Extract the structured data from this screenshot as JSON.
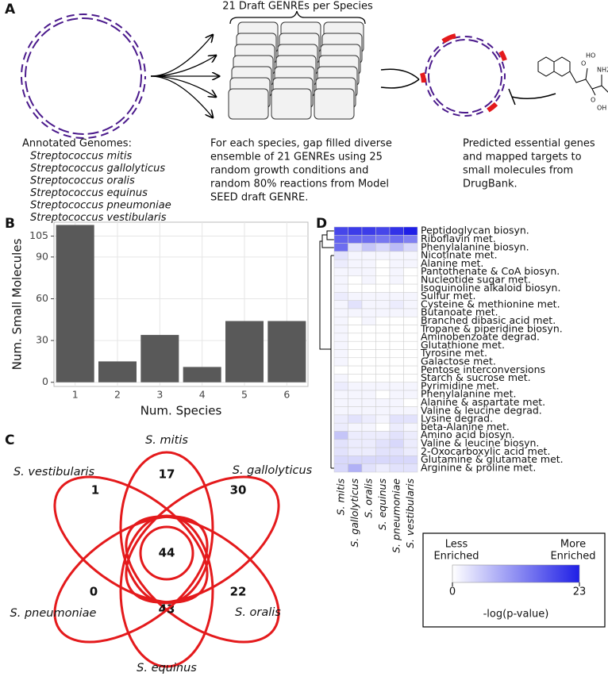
{
  "panel_labels": [
    "A",
    "B",
    "C",
    "D"
  ],
  "panel_a": {
    "stack_title": "21 Draft GENREs per Species",
    "genomes_title": "Annotated Genomes:",
    "species": [
      "Streptococcus mitis",
      "Streptococcus gallolyticus",
      "Streptococcus oralis",
      "Streptococcus equinus",
      "Streptococcus pneumoniae",
      "Streptococcus vestibularis"
    ],
    "description": [
      "For each species, gap filled diverse",
      "ensemble of 21 GENREs using 25",
      "random growth conditions and",
      "random 80% reactions from Model",
      "SEED draft GENRE."
    ],
    "result": [
      "Predicted essential genes",
      "and mapped targets to",
      "small molecules from",
      "DrugBank."
    ],
    "molecule_labels": [
      "O",
      "HO",
      "NH2",
      "O",
      "OH"
    ]
  },
  "chart_data": [
    {
      "type": "bar",
      "categories": [
        "1",
        "2",
        "3",
        "4",
        "5",
        "6"
      ],
      "values": [
        113,
        15,
        34,
        11,
        44,
        44
      ],
      "color": "#595959",
      "ylim": [
        -3,
        115
      ],
      "yticks": [
        0,
        30,
        60,
        90,
        105
      ],
      "x_label": "Num. Species",
      "y_label": "Num. Small Molecules",
      "grid": true
    },
    {
      "type": "venn",
      "sets": [
        "S. mitis",
        "S. gallolyticus",
        "S. oralis",
        "S. equinus",
        "S. pneumoniae",
        "S. vestibularis"
      ],
      "unique": [
        17,
        30,
        22,
        43,
        0,
        1
      ],
      "shared_by_all": 44,
      "color": "#e41a1c"
    },
    {
      "type": "heatmap",
      "rows": [
        "Peptidoglycan biosyn.",
        "Riboflavin met.",
        "Phenylalanine biosyn.",
        "Nicotinate met.",
        "Alanine met.",
        "Pantothenate & CoA biosyn.",
        "Nucleotide sugar met.",
        "Isoquinoline alkaloid biosyn.",
        "Sulfur met.",
        "Cysteine & methionine met.",
        "Butanoate met.",
        "Branched dibasic acid met.",
        "Tropane & piperidine biosyn.",
        "Aminobenzoate degrad.",
        "Glutathione met.",
        "Tyrosine met.",
        "Galactose met.",
        "Pentose interconversions",
        "Starch & sucrose met.",
        "Pyrimidine met.",
        "Phenylalanine met.",
        "Alanine & aspartate met.",
        "Valine & leucine degrad.",
        "Lysine degrad.",
        "beta-Alanine met.",
        "Amino acid biosyn.",
        "Valine & leucine biosyn.",
        "2-Oxocarboxylic acid met.",
        "Glutamine & glutamate met.",
        "Arginine & proline met."
      ],
      "columns": [
        "S. mitis",
        "S. gallolyticus",
        "S. oralis",
        "S. equinus",
        "S. pneumoniae",
        "S. vestibularis"
      ],
      "values": [
        [
          19,
          20,
          20,
          19,
          21,
          23
        ],
        [
          16,
          15,
          15,
          14,
          15,
          13
        ],
        [
          15,
          3,
          6,
          4,
          7,
          4
        ],
        [
          3,
          1,
          1,
          1,
          1,
          1
        ],
        [
          2,
          1,
          1,
          0,
          1,
          1
        ],
        [
          1,
          1,
          1,
          0,
          1,
          0
        ],
        [
          1,
          0,
          1,
          0,
          1,
          0
        ],
        [
          1,
          0,
          0,
          0,
          0,
          0
        ],
        [
          2,
          1,
          1,
          1,
          1,
          1
        ],
        [
          1,
          3,
          1,
          1,
          2,
          1
        ],
        [
          1,
          1,
          1,
          1,
          1,
          1
        ],
        [
          1,
          0,
          1,
          0,
          0,
          0
        ],
        [
          1,
          0,
          0,
          0,
          0,
          0
        ],
        [
          1,
          0,
          0,
          0,
          0,
          0
        ],
        [
          1,
          0,
          0,
          0,
          0,
          0
        ],
        [
          1,
          0,
          0,
          0,
          0,
          0
        ],
        [
          1,
          0,
          0,
          0,
          0,
          0
        ],
        [
          0,
          0,
          0,
          0,
          0,
          0
        ],
        [
          1,
          0,
          0,
          0,
          0,
          0
        ],
        [
          2,
          1,
          1,
          1,
          1,
          1
        ],
        [
          1,
          1,
          1,
          0,
          1,
          1
        ],
        [
          1,
          1,
          1,
          1,
          1,
          0
        ],
        [
          1,
          1,
          1,
          1,
          1,
          1
        ],
        [
          2,
          3,
          2,
          1,
          3,
          3
        ],
        [
          2,
          1,
          1,
          0,
          2,
          1
        ],
        [
          6,
          2,
          2,
          2,
          3,
          2
        ],
        [
          3,
          2,
          2,
          3,
          4,
          2
        ],
        [
          3,
          2,
          2,
          3,
          3,
          2
        ],
        [
          4,
          4,
          4,
          4,
          4,
          4
        ],
        [
          4,
          8,
          3,
          2,
          3,
          3
        ]
      ],
      "clim": [
        0,
        23
      ],
      "color_low": "#ffffff",
      "color_high": "#1f1fe6",
      "legend_low": [
        "Less",
        "Enriched"
      ],
      "legend_high": [
        "More",
        "Enriched"
      ],
      "legend_title": "-log(p-value)",
      "legend_ticks": [
        0,
        23
      ]
    }
  ]
}
